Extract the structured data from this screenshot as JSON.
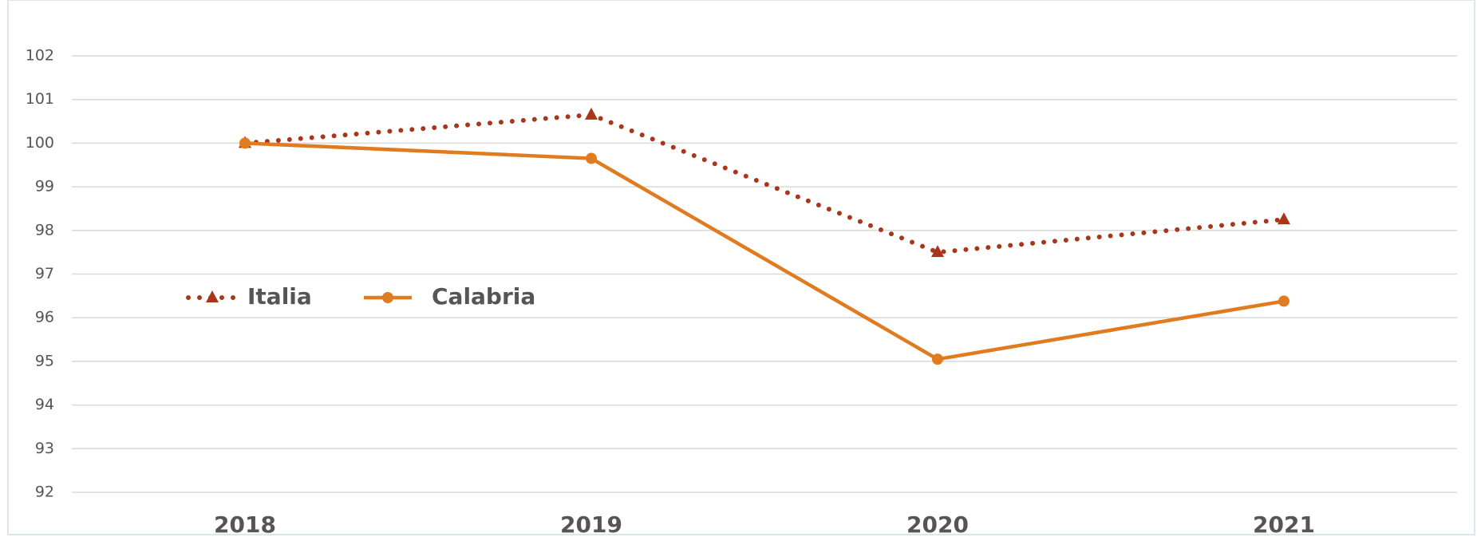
{
  "chart_data": {
    "type": "line",
    "categories": [
      "2018",
      "2019",
      "2020",
      "2021"
    ],
    "series": [
      {
        "name": "Italia",
        "color": "#a8361a",
        "style": "dotted",
        "marker": "triangle",
        "values": [
          100,
          100.65,
          97.5,
          98.25
        ]
      },
      {
        "name": "Calabria",
        "color": "#e07b20",
        "style": "solid",
        "marker": "circle",
        "values": [
          100,
          99.65,
          95.05,
          96.38
        ]
      }
    ],
    "ylim": [
      92,
      102
    ],
    "yticks": [
      92,
      93,
      94,
      95,
      96,
      97,
      98,
      99,
      100,
      101,
      102
    ],
    "grid": true,
    "legend": "left"
  }
}
